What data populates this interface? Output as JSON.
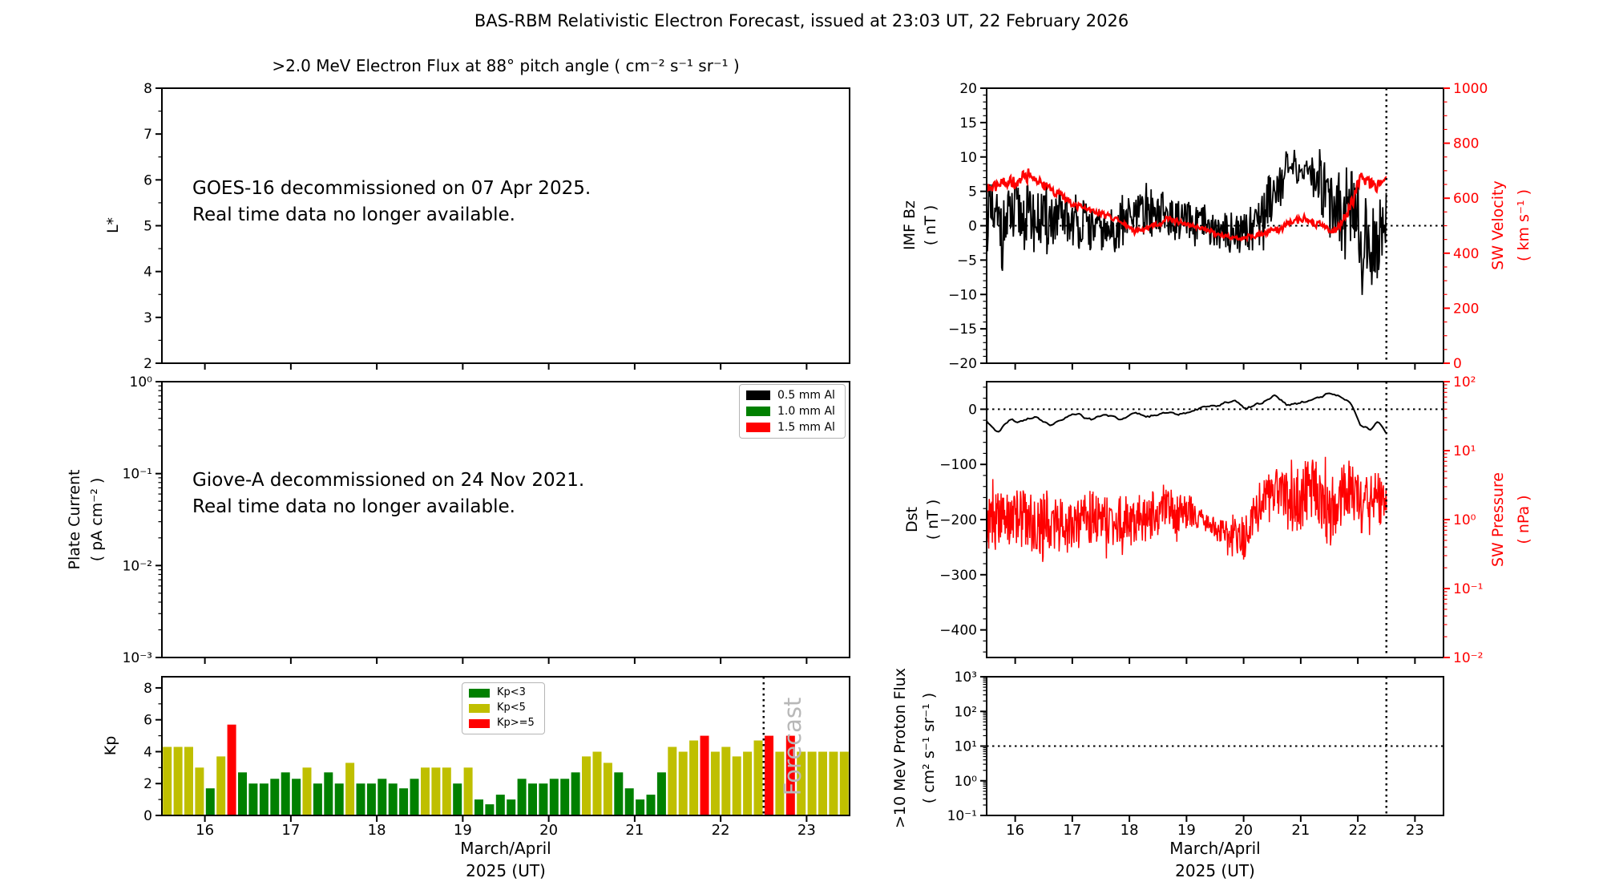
{
  "title": "BAS-RBM Relativistic Electron Forecast, issued at 23:03 UT, 22 February 2026",
  "colors": {
    "black": "#000000",
    "red": "#ff0000",
    "green": "#008000",
    "olive": "#bfbf00",
    "forecast_gray": "#b8b8b8",
    "background": "#ffffff"
  },
  "time_axis": {
    "start": 15.5,
    "end": 23.5,
    "tick_values": [
      16,
      17,
      18,
      19,
      20,
      21,
      22,
      23
    ],
    "tick_labels": [
      "16",
      "17",
      "18",
      "19",
      "20",
      "21",
      "22",
      "23"
    ],
    "xlabel_line1": "March/April",
    "xlabel_line2": "2025 (UT)",
    "forecast_boundary": 22.5
  },
  "panels": {
    "flux": {
      "title": ">2.0 MeV Electron Flux at 88° pitch angle ( cm⁻² s⁻¹ sr⁻¹ )",
      "ylabel": "L*",
      "ylim": [
        2,
        8
      ],
      "yticks": [
        {
          "v": 8,
          "t": "8"
        },
        {
          "v": 7,
          "t": "7"
        },
        {
          "v": 6,
          "t": "6"
        },
        {
          "v": 5,
          "t": "5"
        },
        {
          "v": 4,
          "t": "4"
        },
        {
          "v": 3,
          "t": "3"
        },
        {
          "v": 2,
          "t": "2"
        }
      ],
      "annotation_line1": "GOES-16 decommissioned on 07 Apr 2025.",
      "annotation_line2": "Real time data no longer available."
    },
    "plate": {
      "ylabel_line1": "Plate Current",
      "ylabel_line2": "( pA cm⁻² )",
      "ylim_log_exp": [
        -3,
        0
      ],
      "yticks": [
        {
          "v": 1,
          "t": "10⁰"
        },
        {
          "v": 0.1,
          "t": "10⁻¹"
        },
        {
          "v": 0.01,
          "t": "10⁻²"
        },
        {
          "v": 0.001,
          "t": "10⁻³"
        }
      ],
      "annotation_line1": "Giove-A decommissioned on 24 Nov 2021.",
      "annotation_line2": "Real time data no longer available.",
      "legend": [
        {
          "label": "0.5 mm Al",
          "color": "#000000"
        },
        {
          "label": "1.0 mm Al",
          "color": "#008000"
        },
        {
          "label": "1.5 mm Al",
          "color": "#ff0000"
        }
      ]
    },
    "kp": {
      "ylabel": "Kp",
      "ylim": [
        0,
        8.7
      ],
      "yticks": [
        {
          "v": 0,
          "t": "0"
        },
        {
          "v": 2,
          "t": "2"
        },
        {
          "v": 4,
          "t": "4"
        },
        {
          "v": 6,
          "t": "6"
        },
        {
          "v": 8,
          "t": "8"
        }
      ],
      "legend": [
        {
          "label": "Kp<3",
          "color": "#008000"
        },
        {
          "label": "Kp<5",
          "color": "#bfbf00"
        },
        {
          "label": "Kp>=5",
          "color": "#ff0000"
        }
      ],
      "forecast_label": "Forecast"
    },
    "bz": {
      "ylabel_line1": "IMF Bz",
      "ylabel_line2": "( nT )",
      "ylim": [
        -20,
        20
      ],
      "yticks": [
        {
          "v": 20,
          "t": "20"
        },
        {
          "v": 15,
          "t": "15"
        },
        {
          "v": 10,
          "t": "10"
        },
        {
          "v": 5,
          "t": "5"
        },
        {
          "v": 0,
          "t": "0"
        },
        {
          "v": -5,
          "t": "−5"
        },
        {
          "v": -10,
          "t": "−10"
        },
        {
          "v": -15,
          "t": "−15"
        },
        {
          "v": -20,
          "t": "−20"
        }
      ],
      "zero_reference": 0,
      "right_ylabel_line1": "SW Velocity",
      "right_ylabel_line2": "( km s⁻¹ )",
      "right_ylim": [
        0,
        1000
      ],
      "right_yticks": [
        {
          "v": 1000,
          "t": "1000"
        },
        {
          "v": 800,
          "t": "800"
        },
        {
          "v": 600,
          "t": "600"
        },
        {
          "v": 400,
          "t": "400"
        },
        {
          "v": 200,
          "t": "200"
        },
        {
          "v": 0,
          "t": "0"
        }
      ]
    },
    "dst": {
      "ylabel_line1": "Dst",
      "ylabel_line2": "( nT )",
      "ylim": [
        -450,
        50
      ],
      "yticks": [
        {
          "v": 0,
          "t": "0"
        },
        {
          "v": -100,
          "t": "−100"
        },
        {
          "v": -200,
          "t": "−200"
        },
        {
          "v": -300,
          "t": "−300"
        },
        {
          "v": -400,
          "t": "−400"
        }
      ],
      "zero_reference": 0,
      "right_ylabel_line1": "SW Pressure",
      "right_ylabel_line2": "( nPa )",
      "right_ylim_log_exp": [
        -2,
        2
      ],
      "right_yticks": [
        {
          "v": 100,
          "t": "10²"
        },
        {
          "v": 10,
          "t": "10¹"
        },
        {
          "v": 1,
          "t": "10⁰"
        },
        {
          "v": 0.1,
          "t": "10⁻¹"
        },
        {
          "v": 0.01,
          "t": "10⁻²"
        }
      ]
    },
    "proton": {
      "ylabel_line1": ">10 MeV Proton Flux",
      "ylabel_line2": "( cm² s⁻¹ sr⁻¹ )",
      "ylim_log_exp": [
        -1,
        3
      ],
      "yticks": [
        {
          "v": 1000,
          "t": "10³"
        },
        {
          "v": 100,
          "t": "10²"
        },
        {
          "v": 10,
          "t": "10¹"
        },
        {
          "v": 1,
          "t": "10⁰"
        },
        {
          "v": 0.1,
          "t": "10⁻¹"
        }
      ],
      "reference_level": 10
    }
  },
  "chart_data": [
    {
      "type": "bar",
      "panel": "kp",
      "title": "Kp index, 3-hour intervals",
      "x_start": 15.5,
      "x_step_days": 0.125,
      "values": [
        4.3,
        4.3,
        4.3,
        3.0,
        1.7,
        3.7,
        5.7,
        2.7,
        2.0,
        2.0,
        2.3,
        2.7,
        2.3,
        3.0,
        2.0,
        2.7,
        2.0,
        3.3,
        2.0,
        2.0,
        2.3,
        2.0,
        1.7,
        2.3,
        3.0,
        3.0,
        3.0,
        2.0,
        3.0,
        1.0,
        0.7,
        1.3,
        1.0,
        2.3,
        2.0,
        2.0,
        2.3,
        2.3,
        2.7,
        3.7,
        4.0,
        3.3,
        2.7,
        1.7,
        1.0,
        1.3,
        2.7,
        4.3,
        4.0,
        4.7,
        5.0,
        4.0,
        4.3,
        3.7,
        4.0,
        4.7,
        5.0,
        4.0,
        5.0,
        4.0,
        4.0,
        4.0,
        4.0,
        4.0
      ],
      "color_rule": {
        "green_below": 3,
        "olive_below": 5,
        "red_at_or_above": 5
      },
      "forecast_from": 22.5,
      "ylim": [
        0,
        8.7
      ]
    },
    {
      "type": "line",
      "panel": "bz",
      "x_range": [
        15.5,
        22.5
      ],
      "note": "noisy series approximated by keypoints [day, mean, noise_amplitude]",
      "series": [
        {
          "name": "IMF Bz",
          "axis": "left",
          "color": "#000000",
          "width": 1.8,
          "sample_step": 0.012,
          "noise_style": "noisy",
          "seed": 11,
          "log": false,
          "keypoints": [
            [
              15.5,
              1.5,
              5
            ],
            [
              15.8,
              0,
              5.5
            ],
            [
              16.1,
              1.5,
              5
            ],
            [
              16.4,
              0.5,
              4.5
            ],
            [
              16.8,
              1,
              4
            ],
            [
              17.2,
              0,
              3.5
            ],
            [
              17.6,
              -1,
              3
            ],
            [
              18.0,
              1,
              3.5
            ],
            [
              18.4,
              2,
              3.5
            ],
            [
              18.8,
              1,
              3
            ],
            [
              19.2,
              0,
              3
            ],
            [
              19.6,
              -1,
              2.5
            ],
            [
              20.0,
              -1,
              3
            ],
            [
              20.3,
              1,
              5
            ],
            [
              20.55,
              6,
              4
            ],
            [
              20.8,
              8,
              2.5
            ],
            [
              21.1,
              8,
              2
            ],
            [
              21.35,
              7,
              4
            ],
            [
              21.6,
              4,
              6.5
            ],
            [
              21.85,
              2,
              7.5
            ],
            [
              22.1,
              -3,
              6
            ],
            [
              22.3,
              -3,
              6
            ],
            [
              22.5,
              2,
              4
            ]
          ]
        },
        {
          "name": "SW Velocity",
          "axis": "right",
          "color": "#ff0000",
          "width": 2.5,
          "sample_step": 0.01,
          "noise_style": "noisy-smooth",
          "seed": 23,
          "log": false,
          "keypoints": [
            [
              15.5,
              630,
              25
            ],
            [
              15.75,
              655,
              25
            ],
            [
              16.0,
              660,
              30
            ],
            [
              16.25,
              685,
              25
            ],
            [
              16.5,
              650,
              25
            ],
            [
              16.8,
              610,
              20
            ],
            [
              17.1,
              570,
              15
            ],
            [
              17.5,
              545,
              15
            ],
            [
              17.8,
              520,
              12
            ],
            [
              18.1,
              480,
              12
            ],
            [
              18.4,
              500,
              15
            ],
            [
              18.7,
              525,
              15
            ],
            [
              19.0,
              505,
              12
            ],
            [
              19.3,
              490,
              10
            ],
            [
              19.6,
              465,
              10
            ],
            [
              20.0,
              455,
              10
            ],
            [
              20.4,
              475,
              12
            ],
            [
              20.7,
              495,
              20
            ],
            [
              21.0,
              530,
              18
            ],
            [
              21.3,
              505,
              15
            ],
            [
              21.6,
              480,
              18
            ],
            [
              21.85,
              560,
              30
            ],
            [
              22.05,
              680,
              30
            ],
            [
              22.3,
              645,
              30
            ],
            [
              22.5,
              665,
              20
            ]
          ]
        }
      ]
    },
    {
      "type": "line",
      "panel": "dst",
      "x_range": [
        15.5,
        22.5
      ],
      "note": "noisy series approximated by keypoints [day, mean, noise_amplitude]; pressure amplitude in dex",
      "series": [
        {
          "name": "Dst",
          "axis": "left",
          "color": "#000000",
          "width": 2,
          "sample_step": 0.03,
          "noise_style": "smooth",
          "seed": 37,
          "log": false,
          "keypoints": [
            [
              15.5,
              -20,
              6
            ],
            [
              15.7,
              -42,
              5
            ],
            [
              15.9,
              -18,
              5
            ],
            [
              16.1,
              -25,
              5
            ],
            [
              16.35,
              -12,
              5
            ],
            [
              16.6,
              -28,
              5
            ],
            [
              16.85,
              -15,
              4
            ],
            [
              17.1,
              -8,
              4
            ],
            [
              17.35,
              -20,
              4
            ],
            [
              17.6,
              -10,
              4
            ],
            [
              17.85,
              -18,
              4
            ],
            [
              18.1,
              -6,
              4
            ],
            [
              18.35,
              -14,
              4
            ],
            [
              18.6,
              -4,
              4
            ],
            [
              18.85,
              -12,
              4
            ],
            [
              19.1,
              -2,
              4
            ],
            [
              19.35,
              5,
              4
            ],
            [
              19.6,
              8,
              4
            ],
            [
              19.85,
              15,
              4
            ],
            [
              20.05,
              2,
              4
            ],
            [
              20.3,
              12,
              4
            ],
            [
              20.55,
              25,
              4
            ],
            [
              20.75,
              8,
              4
            ],
            [
              21.0,
              12,
              4
            ],
            [
              21.25,
              18,
              4
            ],
            [
              21.5,
              30,
              4
            ],
            [
              21.7,
              22,
              4
            ],
            [
              21.9,
              8,
              4
            ],
            [
              22.05,
              -30,
              5
            ],
            [
              22.2,
              -38,
              5
            ],
            [
              22.35,
              -25,
              5
            ],
            [
              22.5,
              -42,
              4
            ]
          ]
        },
        {
          "name": "SW Pressure",
          "axis": "right",
          "color": "#ff0000",
          "width": 1.5,
          "sample_step": 0.009,
          "noise_style": "noisy-log",
          "seed": 41,
          "log": true,
          "keypoints": [
            [
              15.5,
              0.9,
              0.45
            ],
            [
              16.0,
              1.1,
              0.4
            ],
            [
              16.5,
              0.8,
              0.45
            ],
            [
              17.0,
              0.9,
              0.4
            ],
            [
              17.5,
              1.0,
              0.35
            ],
            [
              18.0,
              0.9,
              0.4
            ],
            [
              18.5,
              1.3,
              0.35
            ],
            [
              19.0,
              1.4,
              0.3
            ],
            [
              19.3,
              0.9,
              0.12
            ],
            [
              19.6,
              0.7,
              0.18
            ],
            [
              20.0,
              0.45,
              0.35
            ],
            [
              20.3,
              1.5,
              0.3
            ],
            [
              20.6,
              2.5,
              0.4
            ],
            [
              20.9,
              1.8,
              0.5
            ],
            [
              21.2,
              3.0,
              0.45
            ],
            [
              21.5,
              1.0,
              0.5
            ],
            [
              21.8,
              3.0,
              0.4
            ],
            [
              22.1,
              1.5,
              0.45
            ],
            [
              22.3,
              2.0,
              0.4
            ],
            [
              22.5,
              1.6,
              0.3
            ]
          ]
        }
      ]
    },
    {
      "type": "line",
      "panel": "proton",
      "x_range": [
        15.5,
        23.5
      ],
      "series": [],
      "note": "no data plotted; dotted reference line at 10 shown"
    },
    {
      "type": "line",
      "panel": "flux",
      "series": [],
      "note": "no data plotted; decommission notice shown"
    },
    {
      "type": "line",
      "panel": "plate",
      "series": [],
      "note": "no data plotted; decommission notice shown"
    }
  ]
}
